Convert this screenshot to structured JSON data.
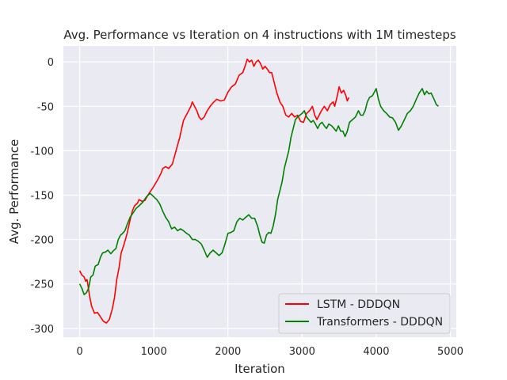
{
  "chart_data": {
    "type": "line",
    "title": "Avg. Performance vs Iteration on 4 instructions with 1M timesteps",
    "xlabel": "Iteration",
    "ylabel": "Avg. Performance",
    "xlim": [
      -220,
      5080
    ],
    "ylim": [
      -310,
      18
    ],
    "xticks": [
      0,
      1000,
      2000,
      3000,
      4000,
      5000
    ],
    "yticks": [
      0,
      -50,
      -100,
      -150,
      -200,
      -250,
      -300
    ],
    "grid": true,
    "legend": "bottom-right",
    "series": [
      {
        "name": "LSTM - DDDQN",
        "color": "#ff0000",
        "points": [
          [
            0,
            -235
          ],
          [
            30,
            -240
          ],
          [
            60,
            -242
          ],
          [
            80,
            -247
          ],
          [
            100,
            -245
          ],
          [
            130,
            -262
          ],
          [
            160,
            -275
          ],
          [
            200,
            -283
          ],
          [
            240,
            -282
          ],
          [
            280,
            -287
          ],
          [
            320,
            -292
          ],
          [
            360,
            -294
          ],
          [
            400,
            -290
          ],
          [
            420,
            -284
          ],
          [
            440,
            -278
          ],
          [
            470,
            -265
          ],
          [
            500,
            -245
          ],
          [
            530,
            -232
          ],
          [
            560,
            -215
          ],
          [
            600,
            -205
          ],
          [
            640,
            -193
          ],
          [
            680,
            -178
          ],
          [
            710,
            -168
          ],
          [
            740,
            -162
          ],
          [
            780,
            -159
          ],
          [
            800,
            -155
          ],
          [
            840,
            -157
          ],
          [
            880,
            -156
          ],
          [
            920,
            -150
          ],
          [
            960,
            -145
          ],
          [
            1000,
            -140
          ],
          [
            1050,
            -133
          ],
          [
            1100,
            -125
          ],
          [
            1120,
            -120
          ],
          [
            1160,
            -118
          ],
          [
            1200,
            -120
          ],
          [
            1250,
            -115
          ],
          [
            1300,
            -100
          ],
          [
            1350,
            -85
          ],
          [
            1400,
            -66
          ],
          [
            1450,
            -58
          ],
          [
            1500,
            -50
          ],
          [
            1520,
            -45
          ],
          [
            1550,
            -50
          ],
          [
            1580,
            -55
          ],
          [
            1610,
            -62
          ],
          [
            1640,
            -65
          ],
          [
            1680,
            -62
          ],
          [
            1720,
            -55
          ],
          [
            1760,
            -50
          ],
          [
            1800,
            -46
          ],
          [
            1850,
            -42
          ],
          [
            1900,
            -44
          ],
          [
            1950,
            -43
          ],
          [
            2000,
            -34
          ],
          [
            2050,
            -28
          ],
          [
            2100,
            -25
          ],
          [
            2150,
            -15
          ],
          [
            2200,
            -12
          ],
          [
            2230,
            -5
          ],
          [
            2260,
            3
          ],
          [
            2290,
            0
          ],
          [
            2320,
            2
          ],
          [
            2350,
            -5
          ],
          [
            2380,
            0
          ],
          [
            2410,
            2
          ],
          [
            2440,
            -2
          ],
          [
            2470,
            -8
          ],
          [
            2500,
            -5
          ],
          [
            2530,
            -8
          ],
          [
            2560,
            -12
          ],
          [
            2590,
            -12
          ],
          [
            2620,
            -22
          ],
          [
            2660,
            -35
          ],
          [
            2700,
            -45
          ],
          [
            2740,
            -50
          ],
          [
            2780,
            -60
          ],
          [
            2820,
            -62
          ],
          [
            2860,
            -58
          ],
          [
            2900,
            -62
          ],
          [
            2940,
            -60
          ],
          [
            2980,
            -67
          ],
          [
            3020,
            -68
          ],
          [
            3060,
            -58
          ],
          [
            3100,
            -55
          ],
          [
            3140,
            -50
          ],
          [
            3170,
            -60
          ],
          [
            3200,
            -65
          ],
          [
            3230,
            -60
          ],
          [
            3260,
            -55
          ],
          [
            3300,
            -50
          ],
          [
            3340,
            -55
          ],
          [
            3380,
            -48
          ],
          [
            3420,
            -45
          ],
          [
            3440,
            -50
          ],
          [
            3470,
            -40
          ],
          [
            3500,
            -28
          ],
          [
            3530,
            -35
          ],
          [
            3560,
            -32
          ],
          [
            3590,
            -38
          ],
          [
            3610,
            -44
          ],
          [
            3630,
            -40
          ]
        ]
      },
      {
        "name": "Transformers - DDDQN",
        "color": "#008000",
        "points": [
          [
            0,
            -250
          ],
          [
            30,
            -255
          ],
          [
            60,
            -262
          ],
          [
            90,
            -260
          ],
          [
            120,
            -255
          ],
          [
            150,
            -242
          ],
          [
            180,
            -240
          ],
          [
            210,
            -230
          ],
          [
            250,
            -228
          ],
          [
            280,
            -220
          ],
          [
            310,
            -215
          ],
          [
            350,
            -214
          ],
          [
            380,
            -212
          ],
          [
            420,
            -216
          ],
          [
            450,
            -213
          ],
          [
            490,
            -210
          ],
          [
            520,
            -200
          ],
          [
            550,
            -195
          ],
          [
            580,
            -193
          ],
          [
            610,
            -190
          ],
          [
            640,
            -183
          ],
          [
            680,
            -175
          ],
          [
            720,
            -170
          ],
          [
            760,
            -165
          ],
          [
            800,
            -162
          ],
          [
            850,
            -158
          ],
          [
            900,
            -152
          ],
          [
            950,
            -148
          ],
          [
            1000,
            -152
          ],
          [
            1040,
            -155
          ],
          [
            1080,
            -160
          ],
          [
            1120,
            -168
          ],
          [
            1160,
            -175
          ],
          [
            1200,
            -180
          ],
          [
            1240,
            -188
          ],
          [
            1280,
            -186
          ],
          [
            1320,
            -190
          ],
          [
            1360,
            -188
          ],
          [
            1400,
            -190
          ],
          [
            1440,
            -193
          ],
          [
            1480,
            -195
          ],
          [
            1520,
            -200
          ],
          [
            1560,
            -200
          ],
          [
            1600,
            -202
          ],
          [
            1640,
            -205
          ],
          [
            1680,
            -212
          ],
          [
            1720,
            -220
          ],
          [
            1760,
            -215
          ],
          [
            1800,
            -212
          ],
          [
            1840,
            -215
          ],
          [
            1880,
            -218
          ],
          [
            1920,
            -215
          ],
          [
            1960,
            -205
          ],
          [
            2000,
            -193
          ],
          [
            2040,
            -192
          ],
          [
            2080,
            -190
          ],
          [
            2120,
            -180
          ],
          [
            2160,
            -176
          ],
          [
            2200,
            -178
          ],
          [
            2240,
            -175
          ],
          [
            2280,
            -172
          ],
          [
            2320,
            -176
          ],
          [
            2360,
            -176
          ],
          [
            2400,
            -185
          ],
          [
            2430,
            -195
          ],
          [
            2460,
            -203
          ],
          [
            2490,
            -204
          ],
          [
            2520,
            -195
          ],
          [
            2550,
            -192
          ],
          [
            2580,
            -193
          ],
          [
            2610,
            -185
          ],
          [
            2640,
            -172
          ],
          [
            2670,
            -155
          ],
          [
            2700,
            -145
          ],
          [
            2730,
            -135
          ],
          [
            2760,
            -120
          ],
          [
            2790,
            -110
          ],
          [
            2820,
            -100
          ],
          [
            2850,
            -85
          ],
          [
            2880,
            -75
          ],
          [
            2910,
            -65
          ],
          [
            2940,
            -62
          ],
          [
            2970,
            -60
          ],
          [
            3000,
            -58
          ],
          [
            3030,
            -55
          ],
          [
            3060,
            -62
          ],
          [
            3090,
            -65
          ],
          [
            3120,
            -68
          ],
          [
            3150,
            -66
          ],
          [
            3180,
            -70
          ],
          [
            3210,
            -75
          ],
          [
            3240,
            -70
          ],
          [
            3270,
            -68
          ],
          [
            3300,
            -72
          ],
          [
            3330,
            -75
          ],
          [
            3360,
            -70
          ],
          [
            3400,
            -72
          ],
          [
            3430,
            -75
          ],
          [
            3460,
            -78
          ],
          [
            3490,
            -72
          ],
          [
            3520,
            -78
          ],
          [
            3550,
            -78
          ],
          [
            3580,
            -84
          ],
          [
            3610,
            -78
          ],
          [
            3640,
            -68
          ],
          [
            3680,
            -65
          ],
          [
            3720,
            -62
          ],
          [
            3760,
            -55
          ],
          [
            3790,
            -60
          ],
          [
            3820,
            -60
          ],
          [
            3850,
            -55
          ],
          [
            3880,
            -45
          ],
          [
            3910,
            -40
          ],
          [
            3950,
            -38
          ],
          [
            4000,
            -30
          ],
          [
            4030,
            -42
          ],
          [
            4060,
            -50
          ],
          [
            4100,
            -55
          ],
          [
            4140,
            -58
          ],
          [
            4180,
            -62
          ],
          [
            4220,
            -63
          ],
          [
            4260,
            -68
          ],
          [
            4300,
            -77
          ],
          [
            4340,
            -72
          ],
          [
            4380,
            -65
          ],
          [
            4420,
            -58
          ],
          [
            4460,
            -55
          ],
          [
            4500,
            -50
          ],
          [
            4540,
            -42
          ],
          [
            4580,
            -35
          ],
          [
            4620,
            -30
          ],
          [
            4650,
            -37
          ],
          [
            4680,
            -33
          ],
          [
            4710,
            -36
          ],
          [
            4740,
            -35
          ],
          [
            4780,
            -42
          ],
          [
            4810,
            -48
          ],
          [
            4840,
            -50
          ]
        ]
      }
    ]
  }
}
